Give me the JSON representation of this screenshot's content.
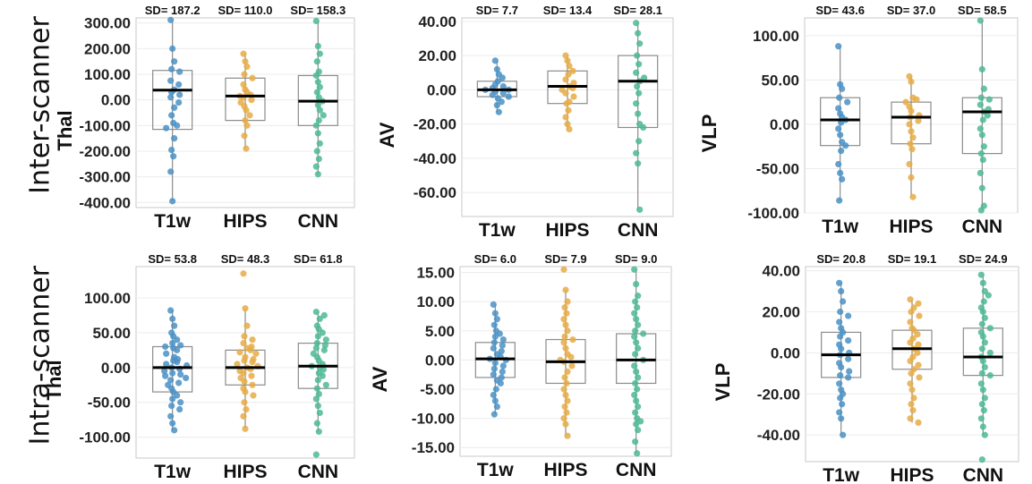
{
  "row_labels": [
    "Inter-scanner",
    "Intra-scanner"
  ],
  "colors": {
    "T1w": "#4a90c4",
    "HIPS": "#e6ac45",
    "CNN": "#4cb894"
  },
  "chart_data": [
    {
      "type": "box",
      "ylabel": "Thal",
      "categories": [
        "T1w",
        "HIPS",
        "CNN"
      ],
      "sd_labels": [
        "SD= 187.2",
        "SD= 110.0",
        "SD= 158.3"
      ],
      "ylim": [
        -420,
        320
      ],
      "ticks": [
        300,
        200,
        100,
        0,
        -100,
        -200,
        -300,
        -400
      ],
      "tick_labels": [
        "300.00",
        "200.00",
        "100.00",
        "0.00",
        "-100.00",
        "-200.00",
        "-300.00",
        "-400.00"
      ],
      "boxes": [
        {
          "q1": -115,
          "median": 38,
          "q3": 115,
          "min": -395,
          "max": 312
        },
        {
          "q1": -80,
          "median": 15,
          "q3": 85,
          "min": -190,
          "max": 180
        },
        {
          "q1": -100,
          "median": -5,
          "q3": 95,
          "min": -290,
          "max": 308
        }
      ],
      "points": [
        [
          312,
          200,
          150,
          120,
          110,
          75,
          60,
          40,
          30,
          20,
          10,
          -10,
          -30,
          -60,
          -90,
          -100,
          -110,
          -150,
          -195,
          -220,
          -280,
          -395
        ],
        [
          180,
          150,
          130,
          100,
          85,
          60,
          40,
          30,
          20,
          15,
          10,
          0,
          -10,
          -25,
          -40,
          -60,
          -80,
          -100,
          -140,
          -190
        ],
        [
          308,
          210,
          180,
          150,
          110,
          95,
          70,
          50,
          30,
          10,
          -5,
          -20,
          -40,
          -60,
          -80,
          -100,
          -130,
          -170,
          -200,
          -230,
          -260,
          -290
        ]
      ]
    },
    {
      "type": "box",
      "ylabel": "AV",
      "categories": [
        "T1w",
        "HIPS",
        "CNN"
      ],
      "sd_labels": [
        "SD= 7.7",
        "SD= 13.4",
        "SD= 28.1"
      ],
      "ylim": [
        -74,
        42
      ],
      "ticks": [
        40,
        20,
        0,
        -20,
        -40,
        -60
      ],
      "tick_labels": [
        "40.00",
        "20.00",
        "0.00",
        "-20.00",
        "-40.00",
        "-60.00"
      ],
      "boxes": [
        {
          "q1": -4,
          "median": 0,
          "q3": 5,
          "min": -13,
          "max": 17
        },
        {
          "q1": -8,
          "median": 2,
          "q3": 11,
          "min": -23,
          "max": 20
        },
        {
          "q1": -22,
          "median": 5,
          "q3": 20,
          "min": -70,
          "max": 39
        }
      ],
      "points": [
        [
          17,
          12,
          9,
          7,
          5,
          3,
          2,
          1,
          0,
          0,
          -1,
          -2,
          -3,
          -4,
          -5,
          -7,
          -9,
          -13
        ],
        [
          20,
          17,
          14,
          11,
          9,
          6,
          4,
          2,
          1,
          0,
          -2,
          -4,
          -7,
          -8,
          -12,
          -16,
          -20,
          -23
        ],
        [
          39,
          33,
          27,
          20,
          15,
          10,
          7,
          5,
          2,
          -2,
          -8,
          -14,
          -20,
          -22,
          -30,
          -37,
          -43,
          -70
        ]
      ]
    },
    {
      "type": "box",
      "ylabel": "VLP",
      "categories": [
        "T1w",
        "HIPS",
        "CNN"
      ],
      "sd_labels": [
        "SD= 43.6",
        "SD= 37.0",
        "SD= 58.5"
      ],
      "ylim": [
        -100,
        120
      ],
      "ticks": [
        100,
        50,
        0,
        -50,
        -100
      ],
      "tick_labels": [
        "100.00",
        "50.00",
        "0.00",
        "-50.00",
        "-100.00"
      ],
      "boxes": [
        {
          "q1": -24,
          "median": 5,
          "q3": 30,
          "min": -86,
          "max": 88
        },
        {
          "q1": -22,
          "median": 8,
          "q3": 25,
          "min": -82,
          "max": 54
        },
        {
          "q1": -33,
          "median": 14,
          "q3": 30,
          "min": -97,
          "max": 117
        }
      ],
      "points": [
        [
          88,
          45,
          40,
          30,
          25,
          18,
          12,
          8,
          5,
          2,
          -5,
          -12,
          -20,
          -24,
          -30,
          -45,
          -55,
          -62,
          -86
        ],
        [
          54,
          48,
          30,
          28,
          25,
          20,
          15,
          10,
          8,
          4,
          0,
          -8,
          -15,
          -22,
          -28,
          -45,
          -60,
          -82
        ],
        [
          117,
          62,
          40,
          30,
          28,
          22,
          17,
          14,
          10,
          5,
          -5,
          -12,
          -25,
          -33,
          -40,
          -55,
          -72,
          -92,
          -97
        ]
      ]
    },
    {
      "type": "box",
      "ylabel": "Thal",
      "categories": [
        "T1w",
        "HIPS",
        "CNN"
      ],
      "sd_labels": [
        "SD= 53.8",
        "SD= 48.3",
        "SD= 61.8"
      ],
      "ylim": [
        -130,
        145
      ],
      "ticks": [
        100,
        50,
        0,
        -50,
        -100
      ],
      "tick_labels": [
        "100.00",
        "50.00",
        "0.00",
        "-50.00",
        "-100.00"
      ],
      "boxes": [
        {
          "q1": -35,
          "median": 0,
          "q3": 30,
          "min": -90,
          "max": 82
        },
        {
          "q1": -25,
          "median": 0,
          "q3": 25,
          "min": -88,
          "max": 85
        },
        {
          "q1": -30,
          "median": 2,
          "q3": 35,
          "min": -92,
          "max": 80
        }
      ],
      "points": [
        [
          82,
          70,
          60,
          50,
          45,
          40,
          35,
          32,
          30,
          28,
          25,
          20,
          15,
          12,
          10,
          8,
          5,
          3,
          0,
          -2,
          -5,
          -8,
          -10,
          -12,
          -15,
          -18,
          -22,
          -25,
          -30,
          -35,
          -40,
          -45,
          -50,
          -55,
          -60,
          -70,
          -80,
          -90
        ],
        [
          135,
          85,
          60,
          45,
          40,
          35,
          30,
          28,
          25,
          22,
          20,
          15,
          12,
          10,
          8,
          5,
          2,
          0,
          -2,
          -5,
          -8,
          -12,
          -15,
          -20,
          -25,
          -30,
          -35,
          -40,
          -50,
          -60,
          -70,
          -88
        ],
        [
          80,
          75,
          70,
          60,
          55,
          50,
          45,
          40,
          35,
          32,
          28,
          25,
          20,
          15,
          10,
          5,
          2,
          0,
          -3,
          -8,
          -12,
          -18,
          -25,
          -30,
          -38,
          -45,
          -55,
          -65,
          -80,
          -92,
          -125
        ]
      ]
    },
    {
      "type": "box",
      "ylabel": "AV",
      "categories": [
        "T1w",
        "HIPS",
        "CNN"
      ],
      "sd_labels": [
        "SD= 6.0",
        "SD= 7.9",
        "SD= 9.0"
      ],
      "ylim": [
        -16.5,
        16
      ],
      "ticks": [
        15,
        10,
        5,
        0,
        -5,
        -10,
        -15
      ],
      "tick_labels": [
        "15.00",
        "10.00",
        "5.00",
        "0.00",
        "-5.00",
        "-10.00",
        "-15.00"
      ],
      "boxes": [
        {
          "q1": -3,
          "median": 0.2,
          "q3": 3,
          "min": -9.3,
          "max": 9.5
        },
        {
          "q1": -4,
          "median": -0.3,
          "q3": 3.5,
          "min": -13,
          "max": 12
        },
        {
          "q1": -4,
          "median": 0,
          "q3": 4.5,
          "min": -16,
          "max": 15.5
        }
      ],
      "points": [
        [
          9.5,
          8,
          7,
          6,
          5,
          4.5,
          4,
          3.5,
          3,
          2.5,
          2,
          1.5,
          1,
          0.5,
          0.2,
          0,
          -0.5,
          -1,
          -1.5,
          -2,
          -2.5,
          -3,
          -3.5,
          -4,
          -5,
          -6,
          -7,
          -8,
          -9.3
        ],
        [
          15.5,
          12,
          10,
          9,
          8,
          7,
          6,
          5,
          4,
          3.5,
          3,
          2,
          1,
          0.5,
          0,
          -0.3,
          -1,
          -2,
          -3,
          -4,
          -5,
          -6,
          -7,
          -8,
          -9,
          -10,
          -11,
          -13
        ],
        [
          15.5,
          13,
          11,
          10,
          9,
          8,
          7,
          6,
          5,
          4.5,
          4,
          3,
          2,
          1,
          0,
          -1,
          -2,
          -3,
          -4,
          -5,
          -6,
          -7,
          -8,
          -9,
          -10,
          -10.5,
          -11,
          -12,
          -14,
          -16
        ]
      ]
    },
    {
      "type": "box",
      "ylabel": "VLP",
      "categories": [
        "T1w",
        "HIPS",
        "CNN"
      ],
      "sd_labels": [
        "SD= 20.8",
        "SD= 19.1",
        "SD= 24.9"
      ],
      "ylim": [
        -53,
        42
      ],
      "ticks": [
        40,
        20,
        0,
        -20,
        -40
      ],
      "tick_labels": [
        "40.00",
        "20.00",
        "0.00",
        "-20.00",
        "-40.00"
      ],
      "boxes": [
        {
          "q1": -12,
          "median": -1,
          "q3": 10,
          "min": -40,
          "max": 34
        },
        {
          "q1": -8,
          "median": 2,
          "q3": 11,
          "min": -34,
          "max": 26
        },
        {
          "q1": -11,
          "median": -2,
          "q3": 12,
          "min": -40,
          "max": 38
        }
      ],
      "points": [
        [
          34,
          30,
          25,
          20,
          18,
          15,
          12,
          10,
          8,
          6,
          4,
          2,
          0,
          -1,
          -3,
          -5,
          -7,
          -9,
          -11,
          -12,
          -15,
          -18,
          -20,
          -22,
          -25,
          -29,
          -32,
          -40
        ],
        [
          26,
          24,
          22,
          20,
          18,
          15,
          12,
          11,
          9,
          7,
          5,
          4,
          2,
          0,
          -2,
          -4,
          -6,
          -8,
          -10,
          -12,
          -15,
          -18,
          -22,
          -25,
          -28,
          -32,
          -34
        ],
        [
          38,
          34,
          30,
          28,
          25,
          22,
          20,
          17,
          14,
          12,
          10,
          8,
          5,
          2,
          0,
          -2,
          -4,
          -7,
          -10,
          -11,
          -15,
          -18,
          -22,
          -25,
          -28,
          -32,
          -36,
          -40,
          -52
        ]
      ]
    }
  ]
}
